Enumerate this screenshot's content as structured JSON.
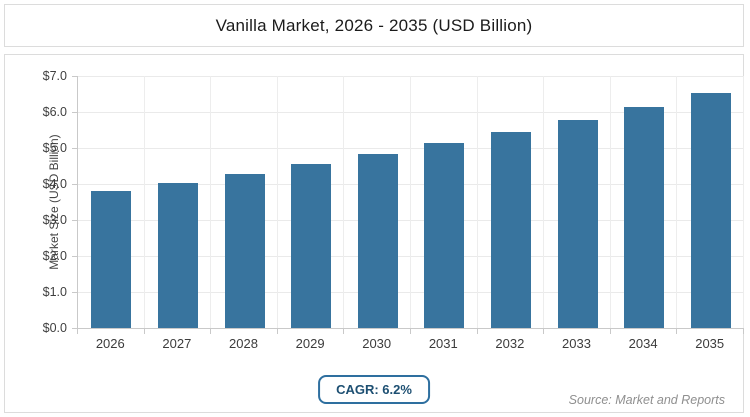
{
  "page": {
    "title": "Vanilla Market, 2026 - 2035 (USD Billion)",
    "cagr_label": "CAGR: 6.2%",
    "source_note": "Source: Market and Reports"
  },
  "chart_data": {
    "type": "bar",
    "title": "Vanilla Market, 2026 - 2035 (USD Billion)",
    "categories": [
      "2026",
      "2027",
      "2028",
      "2029",
      "2030",
      "2031",
      "2032",
      "2033",
      "2034",
      "2035"
    ],
    "values": [
      3.8,
      4.04,
      4.29,
      4.55,
      4.83,
      5.13,
      5.45,
      5.79,
      6.15,
      6.53
    ],
    "xlabel": "",
    "ylabel": "Market Size (USD Billion)",
    "ylim": [
      0,
      7
    ],
    "ytick_step": 1,
    "ytick_labels": [
      "$0.0",
      "$1.0",
      "$2.0",
      "$3.0",
      "$4.0",
      "$5.0",
      "$6.0",
      "$7.0"
    ],
    "grid": true,
    "legend": null,
    "annotations": [
      "CAGR: 6.2%",
      "Source: Market and Reports"
    ],
    "bar_color": "#38749e",
    "cagr": "6.2%"
  },
  "colors": {
    "bar": "#38749e",
    "badge_border": "#2e6f9f",
    "badge_text": "#1d4f72",
    "card_border": "#dcdcdc",
    "source_text": "#8f8f8f"
  }
}
